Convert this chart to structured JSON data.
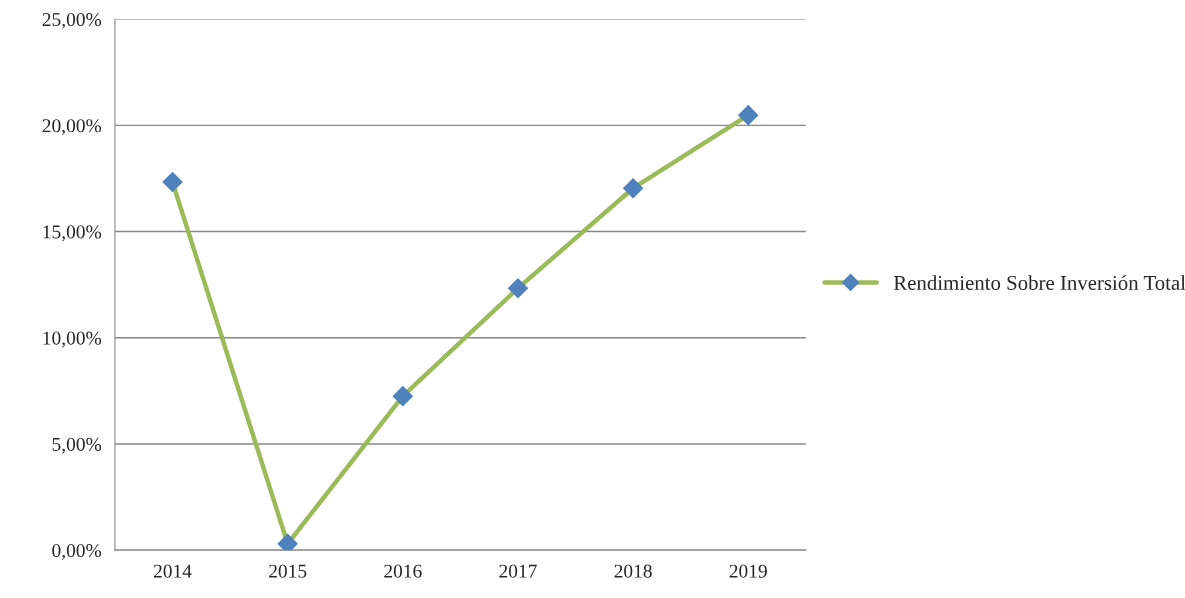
{
  "chart_data": {
    "type": "line",
    "categories": [
      "2014",
      "2015",
      "2016",
      "2017",
      "2018",
      "2019"
    ],
    "series": [
      {
        "name": "Rendimiento Sobre Inversión Total",
        "color": "#9bbb59",
        "colors": [
          "#4f81bd",
          "#4f81bd",
          "#4f81bd",
          "#4f81bd",
          "#4f81bd",
          "#4f81bd"
        ],
        "values": [
          17.33,
          0.3,
          7.25,
          12.33,
          17.04,
          20.48
        ]
      }
    ],
    "ylim": [
      0,
      25
    ],
    "yticks": [
      {
        "value": 0,
        "label": "0,00%"
      },
      {
        "value": 5,
        "label": "5,00%"
      },
      {
        "value": 10,
        "label": "10,00%"
      },
      {
        "value": 15,
        "label": "15,00%"
      },
      {
        "value": 20,
        "label": "20,00%"
      },
      {
        "value": 25,
        "label": "25,00%"
      }
    ],
    "grid": "y",
    "legend": "right",
    "marker": "diamond",
    "line_style": "solid"
  }
}
